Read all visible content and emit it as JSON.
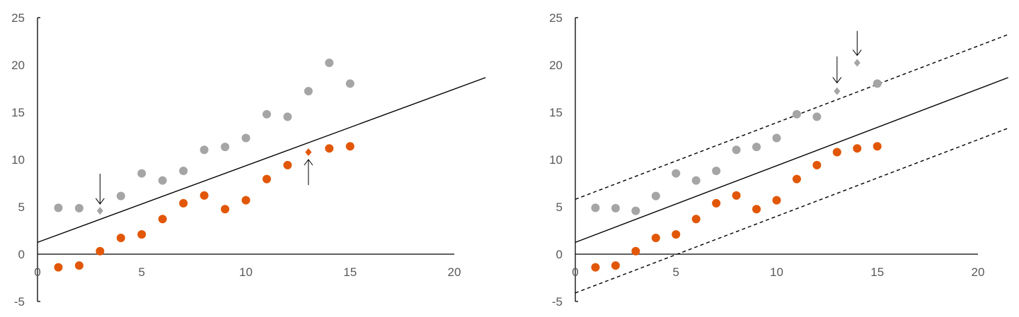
{
  "chart_data": [
    {
      "type": "scatter",
      "xlim": [
        0,
        20
      ],
      "ylim": [
        -5,
        25
      ],
      "x_ticks": [
        "0",
        "5",
        "10",
        "15",
        "20"
      ],
      "y_ticks": [
        "25",
        "20",
        "15",
        "10",
        "5",
        "0",
        "-5"
      ],
      "grid": false,
      "colors": {
        "gray": "#a5a5a5",
        "orange": "#e15707",
        "line": "#000000"
      },
      "series": [
        {
          "color": "gray",
          "x": [
            1,
            2,
            3,
            4,
            5,
            6,
            7,
            8,
            9,
            10,
            11,
            12,
            13,
            14,
            15
          ],
          "y": [
            4.9,
            4.86,
            4.58,
            6.15,
            8.54,
            7.79,
            8.81,
            11.03,
            11.33,
            12.28,
            14.79,
            14.52,
            17.23,
            20.22,
            18.03
          ],
          "highlighted_x": [
            3
          ]
        },
        {
          "color": "orange",
          "x": [
            1,
            2,
            3,
            4,
            5,
            6,
            7,
            8,
            9,
            10,
            11,
            12,
            13,
            14,
            15
          ],
          "y": [
            -1.39,
            -1.2,
            0.32,
            1.72,
            2.09,
            3.71,
            5.38,
            6.2,
            4.76,
            5.7,
            7.94,
            9.41,
            10.78,
            11.18,
            11.4
          ],
          "highlighted_x": [
            13
          ]
        }
      ],
      "lines": [
        {
          "style": "solid",
          "intercept": 1.25,
          "slope": 0.81
        }
      ],
      "annotations": [
        {
          "type": "arrow-down",
          "x": 3,
          "y_from": 8.5,
          "y_to": 5.3
        },
        {
          "type": "arrow-up",
          "x": 13,
          "y_from": 7.3,
          "y_to": 10.0
        }
      ]
    },
    {
      "type": "scatter",
      "xlim": [
        0,
        20
      ],
      "ylim": [
        -5,
        25
      ],
      "x_ticks": [
        "0",
        "5",
        "10",
        "15",
        "20"
      ],
      "y_ticks": [
        "25",
        "20",
        "15",
        "10",
        "5",
        "0",
        "-5"
      ],
      "grid": false,
      "colors": {
        "gray": "#a5a5a5",
        "orange": "#e15707",
        "line": "#000000"
      },
      "series": [
        {
          "color": "gray",
          "x": [
            1,
            2,
            3,
            4,
            5,
            6,
            7,
            8,
            9,
            10,
            11,
            12,
            13,
            14,
            15
          ],
          "y": [
            4.9,
            4.86,
            4.58,
            6.15,
            8.54,
            7.79,
            8.81,
            11.03,
            11.33,
            12.28,
            14.79,
            14.52,
            17.23,
            20.22,
            18.03
          ],
          "highlighted_x": [
            13,
            14
          ]
        },
        {
          "color": "orange",
          "x": [
            1,
            2,
            3,
            4,
            5,
            6,
            7,
            8,
            9,
            10,
            11,
            12,
            13,
            14,
            15
          ],
          "y": [
            -1.39,
            -1.2,
            0.32,
            1.72,
            2.09,
            3.71,
            5.38,
            6.2,
            4.76,
            5.7,
            7.94,
            9.41,
            10.78,
            11.18,
            11.4
          ],
          "highlighted_x": []
        }
      ],
      "lines": [
        {
          "style": "dashed",
          "intercept": 5.8,
          "slope": 0.81
        },
        {
          "style": "solid",
          "intercept": 1.25,
          "slope": 0.81
        },
        {
          "style": "dashed",
          "intercept": -4.1,
          "slope": 0.81
        }
      ],
      "annotations": [
        {
          "type": "arrow-down",
          "x": 13,
          "y_from": 20.9,
          "y_to": 18.1
        },
        {
          "type": "arrow-down",
          "x": 14,
          "y_from": 23.6,
          "y_to": 21.0
        }
      ]
    }
  ]
}
